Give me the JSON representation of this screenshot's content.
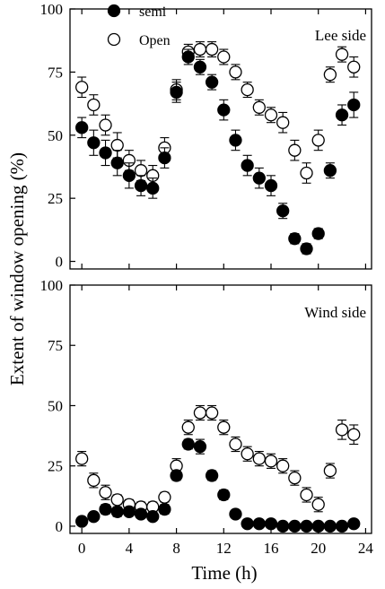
{
  "chart_data": {
    "type": "scatter",
    "ylabel": "Extent of window opening (%)",
    "xlabel": "Time (h)",
    "xlim": [
      -1,
      24.5
    ],
    "ylim": [
      -3,
      100
    ],
    "xticks": [
      0,
      4,
      8,
      12,
      16,
      20,
      24
    ],
    "yticks": [
      0,
      25,
      50,
      75,
      100
    ],
    "legend": {
      "placement": "top-left",
      "entries": [
        {
          "label": "semi",
          "style": "filled",
          "color": "#000000"
        },
        {
          "label": "Open",
          "style": "open",
          "color": "#ffffff"
        }
      ]
    },
    "panels": [
      {
        "annotation": "Lee side",
        "series": [
          {
            "name": "semi",
            "style": "filled",
            "x": [
              0,
              1,
              2,
              3,
              4,
              5,
              6,
              7,
              8,
              9,
              10,
              11,
              12,
              13,
              14,
              15,
              16,
              17,
              18,
              19,
              20,
              21,
              22,
              23
            ],
            "y": [
              53,
              47,
              43,
              39,
              34,
              30,
              29,
              41,
              67,
              81,
              77,
              71,
              60,
              48,
              38,
              33,
              30,
              20,
              9,
              5,
              11,
              36,
              58,
              62
            ],
            "err": [
              4,
              5,
              5,
              5,
              5,
              4,
              4,
              4,
              4,
              3,
              3,
              3,
              4,
              4,
              4,
              4,
              4,
              3,
              2,
              2,
              2,
              3,
              4,
              5
            ]
          },
          {
            "name": "Open",
            "style": "open",
            "x": [
              0,
              1,
              2,
              3,
              4,
              5,
              6,
              7,
              8,
              9,
              10,
              11,
              12,
              13,
              14,
              15,
              16,
              17,
              18,
              19,
              20,
              21,
              22,
              23
            ],
            "y": [
              69,
              62,
              54,
              46,
              40,
              36,
              34,
              45,
              68,
              83,
              84,
              84,
              81,
              75,
              68,
              61,
              58,
              55,
              44,
              35,
              48,
              74,
              82,
              77
            ],
            "err": [
              4,
              4,
              4,
              5,
              4,
              4,
              4,
              4,
              4,
              3,
              3,
              3,
              3,
              3,
              3,
              3,
              3,
              4,
              4,
              4,
              4,
              3,
              3,
              4
            ]
          }
        ]
      },
      {
        "annotation": "Wind side",
        "series": [
          {
            "name": "semi",
            "style": "filled",
            "x": [
              0,
              1,
              2,
              3,
              4,
              5,
              6,
              7,
              8,
              9,
              10,
              11,
              12,
              13,
              14,
              15,
              16,
              17,
              18,
              19,
              20,
              21,
              22,
              23
            ],
            "y": [
              2,
              4,
              7,
              6,
              6,
              5,
              4,
              7,
              21,
              34,
              33,
              21,
              13,
              5,
              1,
              1,
              1,
              0,
              0,
              0,
              0,
              0,
              0,
              1
            ],
            "err": [
              1,
              1,
              2,
              2,
              1,
              1,
              1,
              2,
              2,
              2,
              3,
              2,
              2,
              1,
              1,
              1,
              1,
              1,
              1,
              1,
              1,
              1,
              1,
              1
            ]
          },
          {
            "name": "Open",
            "style": "open",
            "x": [
              0,
              1,
              2,
              3,
              4,
              5,
              6,
              7,
              8,
              9,
              10,
              11,
              12,
              13,
              14,
              15,
              16,
              17,
              18,
              19,
              20,
              21,
              22,
              23
            ],
            "y": [
              28,
              19,
              14,
              11,
              9,
              8,
              8,
              12,
              25,
              41,
              47,
              47,
              41,
              34,
              30,
              28,
              27,
              25,
              20,
              13,
              9,
              23,
              40,
              38
            ],
            "err": [
              3,
              3,
              3,
              2,
              2,
              2,
              2,
              2,
              3,
              3,
              3,
              3,
              3,
              3,
              3,
              3,
              3,
              3,
              3,
              3,
              3,
              3,
              4,
              4
            ]
          }
        ]
      }
    ]
  }
}
